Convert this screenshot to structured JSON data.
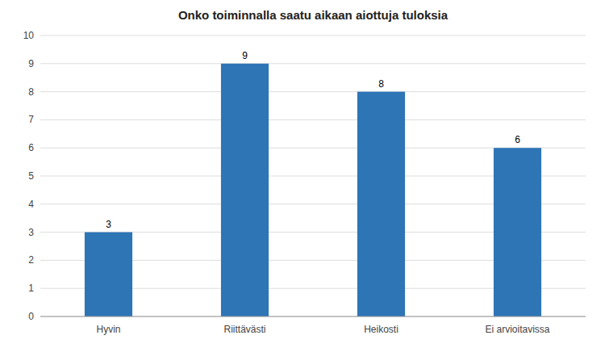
{
  "chart_data": {
    "type": "bar",
    "title": "Onko toiminnalla saatu aikaan aiottuja tuloksia",
    "categories": [
      "Hyvin",
      "Riittävästi",
      "Heikosti",
      "Ei arvioitavissa"
    ],
    "values": [
      3,
      9,
      8,
      6
    ],
    "color": "#2E75B6",
    "ylim": [
      0,
      10
    ],
    "yticks": [
      0,
      1,
      2,
      3,
      4,
      5,
      6,
      7,
      8,
      9,
      10
    ],
    "grid": true,
    "data_labels": true
  }
}
